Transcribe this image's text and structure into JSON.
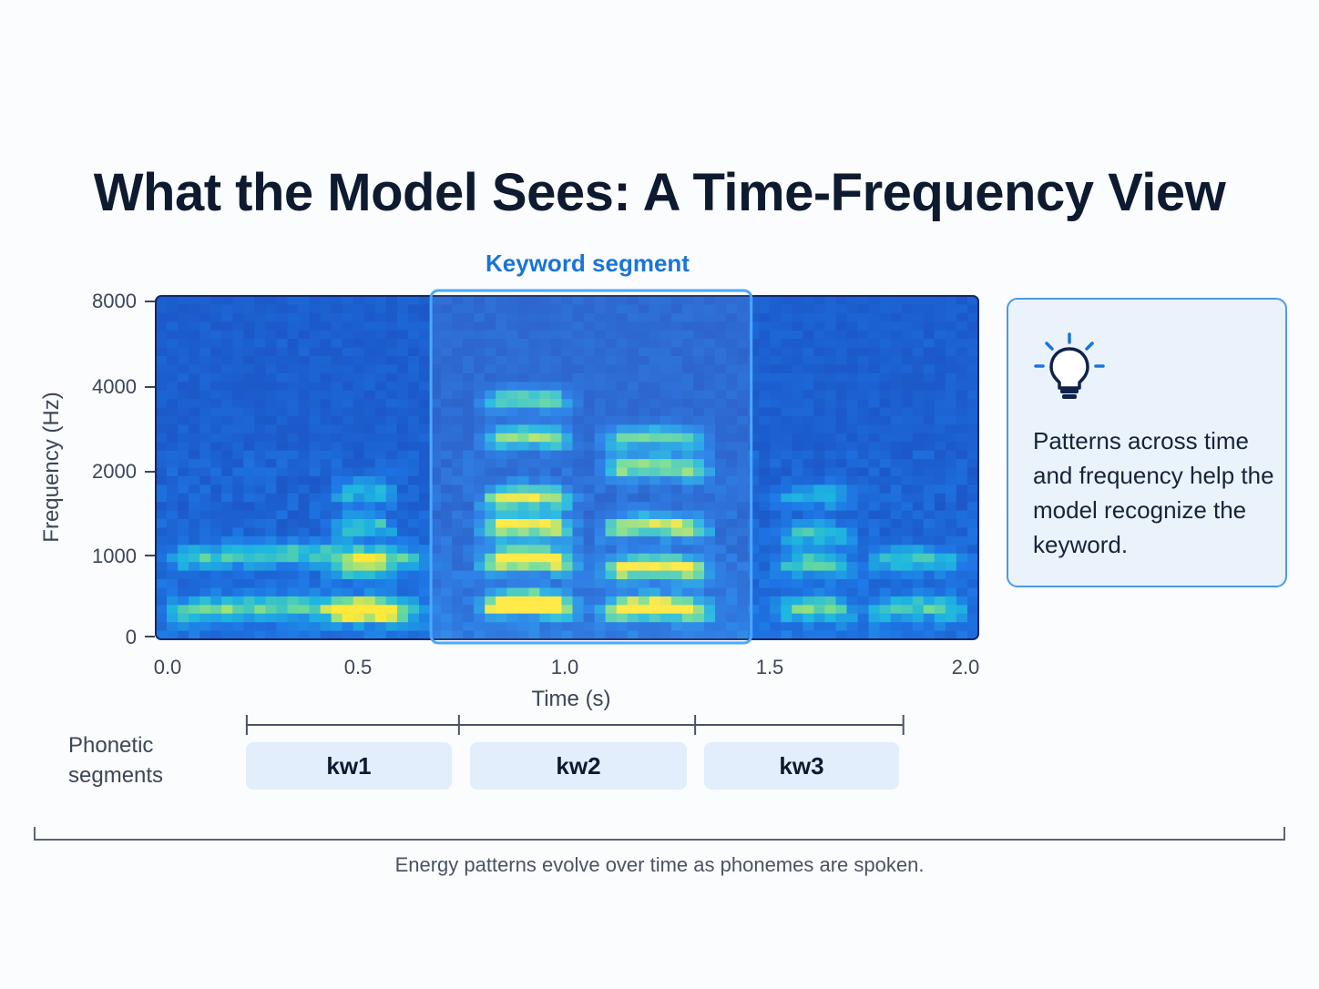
{
  "title": "What the Model Sees: A Time-Frequency View",
  "keyword_label": "Keyword segment",
  "callout": {
    "icon": "lightbulb-icon",
    "text": "Patterns across time and frequency help the model recognize the keyword."
  },
  "phonetic_label": "Phonetic segments",
  "segments": [
    {
      "label": "kw1",
      "start": 0.2,
      "end": 0.73
    },
    {
      "label": "kw2",
      "start": 0.73,
      "end": 1.32
    },
    {
      "label": "kw3",
      "start": 1.32,
      "end": 1.84
    }
  ],
  "bottom_caption": "Energy patterns evolve over time as phonemes are spoken.",
  "colors": {
    "background_low": "#1a47b8",
    "energy_mid": "#1fb7e0",
    "energy_high": "#ffe93a",
    "highlight": "#4aa8ff",
    "callout_border": "#4b9ae6"
  },
  "chart_data": {
    "type": "heatmap",
    "xlabel": "Time (s)",
    "ylabel": "Frequency (Hz)",
    "x_ticks": [
      "0.0",
      "0.5",
      "1.0",
      "1.5",
      "2.0"
    ],
    "y_ticks": [
      "0",
      "1000",
      "2000",
      "4000",
      "8000"
    ],
    "xlim": [
      0,
      2.0
    ],
    "y_tick_values": [
      0,
      1000,
      2000,
      4000,
      8000
    ],
    "highlight_region": {
      "x_start": 0.66,
      "x_end": 1.46
    },
    "energy_events": [
      {
        "t_start": 0.0,
        "t_end": 0.65,
        "formants_hz": [
          300,
          950
        ],
        "intensity": 0.5
      },
      {
        "t_start": 0.4,
        "t_end": 0.58,
        "formants_hz": [
          250,
          800,
          1300,
          1700
        ],
        "intensity": 0.55
      },
      {
        "t_start": 0.78,
        "t_end": 1.02,
        "formants_hz": [
          350,
          900,
          1300,
          1650,
          2700,
          3600
        ],
        "intensity": 1.0
      },
      {
        "t_start": 1.08,
        "t_end": 1.36,
        "formants_hz": [
          300,
          800,
          1300,
          2000,
          2700
        ],
        "intensity": 0.85
      },
      {
        "t_start": 1.52,
        "t_end": 1.72,
        "formants_hz": [
          300,
          850,
          1200,
          1650
        ],
        "intensity": 0.55
      },
      {
        "t_start": 1.75,
        "t_end": 2.0,
        "formants_hz": [
          300,
          900
        ],
        "intensity": 0.45
      }
    ]
  }
}
